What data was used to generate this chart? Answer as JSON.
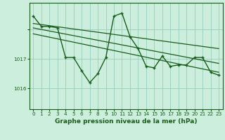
{
  "title": "Graphe pression niveau de la mer (hPa)",
  "bg_color": "#cceedd",
  "grid_color": "#99ccbb",
  "line_color": "#1a5c1a",
  "xlim": [
    -0.5,
    23.5
  ],
  "ylim": [
    1015.3,
    1018.9
  ],
  "yticks": [
    1016,
    1017
  ],
  "xticks": [
    0,
    1,
    2,
    3,
    4,
    5,
    6,
    7,
    8,
    9,
    10,
    11,
    12,
    13,
    14,
    15,
    16,
    17,
    18,
    19,
    20,
    21,
    22,
    23
  ],
  "main_x": [
    0,
    1,
    2,
    3,
    4,
    5,
    6,
    7,
    8,
    9,
    10,
    11,
    12,
    13,
    14,
    15,
    16,
    17,
    18,
    19,
    20,
    21,
    22,
    23
  ],
  "main_y": [
    1018.45,
    1018.1,
    1018.1,
    1018.05,
    1017.05,
    1017.05,
    1016.6,
    1016.2,
    1016.5,
    1017.05,
    1018.45,
    1018.55,
    1017.75,
    1017.35,
    1016.75,
    1016.7,
    1017.1,
    1016.75,
    1016.8,
    1016.8,
    1017.05,
    1017.05,
    1016.55,
    1016.45
  ],
  "trend1_x": [
    0,
    23
  ],
  "trend1_y": [
    1018.2,
    1017.35
  ],
  "trend2_x": [
    0,
    23
  ],
  "trend2_y": [
    1018.05,
    1016.85
  ],
  "trend3_x": [
    0,
    23
  ],
  "trend3_y": [
    1017.85,
    1016.55
  ],
  "ylabel_fontsize": 6,
  "xlabel_fontsize": 6.5,
  "tick_fontsize": 5.2
}
